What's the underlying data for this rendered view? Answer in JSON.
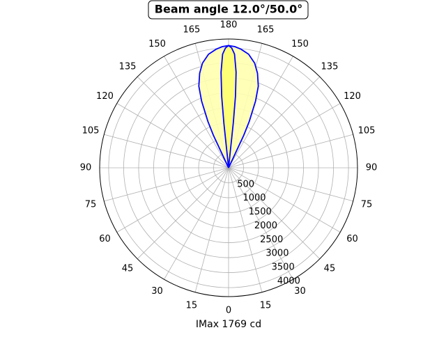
{
  "chart_data": {
    "type": "polar",
    "title": "Beam angle 12.0°/50.0°",
    "xlabel": "IMax 1769 cd",
    "rlim": [
      0,
      4300
    ],
    "rticks": [
      500,
      1000,
      1500,
      2000,
      2500,
      3000,
      3500,
      4000
    ],
    "thetaticks": [
      0,
      15,
      30,
      45,
      60,
      75,
      90,
      105,
      120,
      135,
      150,
      165,
      180,
      {
        "value": 195,
        "label": "165"
      },
      {
        "value": 210,
        "label": "150"
      },
      {
        "value": 225,
        "label": "135"
      },
      {
        "value": 240,
        "label": "120"
      },
      {
        "value": 255,
        "label": "105"
      },
      {
        "value": 270,
        "label": "90"
      },
      {
        "value": 285,
        "label": "75"
      },
      {
        "value": 300,
        "label": "60"
      },
      {
        "value": 315,
        "label": "45"
      },
      {
        "value": 330,
        "label": "30"
      },
      {
        "value": 345,
        "label": "15"
      }
    ],
    "grid": true,
    "series": [
      {
        "color": "#0000ff",
        "fill": "#ffffb0",
        "theta": [
          154,
          155,
          156,
          158,
          160,
          163,
          166,
          170,
          174,
          177,
          180,
          183,
          186,
          190,
          194,
          197,
          200,
          202,
          204,
          205,
          206
        ],
        "r": [
          0,
          1200,
          1700,
          2400,
          2900,
          3300,
          3600,
          3850,
          3980,
          4050,
          4080,
          4050,
          3980,
          3850,
          3600,
          3300,
          2900,
          2400,
          1700,
          1200,
          0
        ]
      },
      {
        "color": "#0000ff",
        "fill": "#ffff70",
        "theta": [
          173.5,
          174,
          174.5,
          175.5,
          177,
          178.5,
          180,
          181.5,
          183,
          184.5,
          185.5,
          186,
          186.5
        ],
        "r": [
          0,
          1500,
          2400,
          3200,
          3800,
          4000,
          4080,
          4000,
          3800,
          3200,
          2400,
          1500,
          0
        ]
      }
    ]
  }
}
